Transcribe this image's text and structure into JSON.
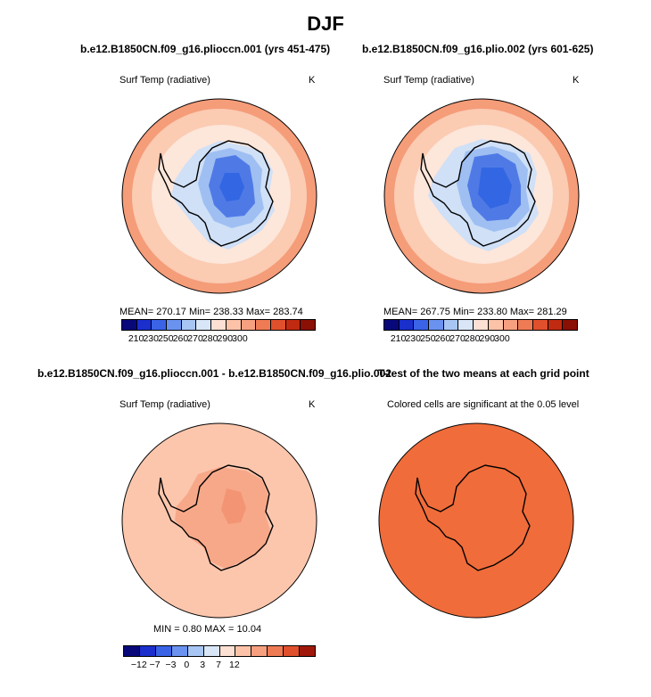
{
  "title": "DJF",
  "panels": [
    {
      "title": "b.e12.B1850CN.f09_g16.plioccn.001 (yrs 451-475)",
      "subtitle": "Surf Temp (radiative)",
      "units": "K",
      "stats": "MEAN= 270.17   Min= 238.33   Max= 283.74",
      "colorbar_ticks": [
        "210",
        "230",
        "250",
        "260",
        "270",
        "280",
        "290",
        "300"
      ]
    },
    {
      "title": "b.e12.B1850CN.f09_g16.plio.002 (yrs 601-625)",
      "subtitle": "Surf Temp (radiative)",
      "units": "K",
      "stats": "MEAN= 267.75   Min= 233.80   Max= 281.29",
      "colorbar_ticks": [
        "210",
        "230",
        "250",
        "260",
        "270",
        "280",
        "290",
        "300"
      ]
    },
    {
      "title": "b.e12.B1850CN.f09_g16.plioccn.001 - b.e12.B1850CN.f09_g16.plio.002",
      "subtitle": "Surf Temp (radiative)",
      "units": "K",
      "stats": "MIN =    0.80  MAX =   10.04",
      "colorbar_ticks": [
        "−12",
        "−7",
        "−3",
        "0",
        "3",
        "7",
        "12"
      ]
    },
    {
      "title": "T-test of the two means at each grid point",
      "subtitle": "Colored cells are significant at the 0.05 level"
    }
  ],
  "colors": {
    "temp_scale": [
      "#08087a",
      "#1a2fcc",
      "#3a63e6",
      "#6a93f0",
      "#a8c6f4",
      "#d8e6f8",
      "#fbe0d3",
      "#fcc3a8",
      "#f7a080",
      "#ef7b55",
      "#e0502c",
      "#c02a10",
      "#8a0f05"
    ],
    "diff_scale": [
      "#08087a",
      "#1a2fcc",
      "#3a63e6",
      "#6a93f0",
      "#a8c6f4",
      "#d8e6f8",
      "#fbe0d3",
      "#fcc3a8",
      "#f7a080",
      "#ef7b55",
      "#e0502c",
      "#a0180a"
    ],
    "ocean_outer": "#f59c79",
    "ocean_mid": "#fbcbb2",
    "ocean_inner": "#fde6da",
    "ice_light": "#cfe0f7",
    "ice_mid": "#9fbff2",
    "ice_core": "#4f7ae6",
    "ice_deep": "#3366e2",
    "diff_fill": "#fcc6ad",
    "diff_land": "#f7a889",
    "ttest_fill": "#f06c3a"
  }
}
